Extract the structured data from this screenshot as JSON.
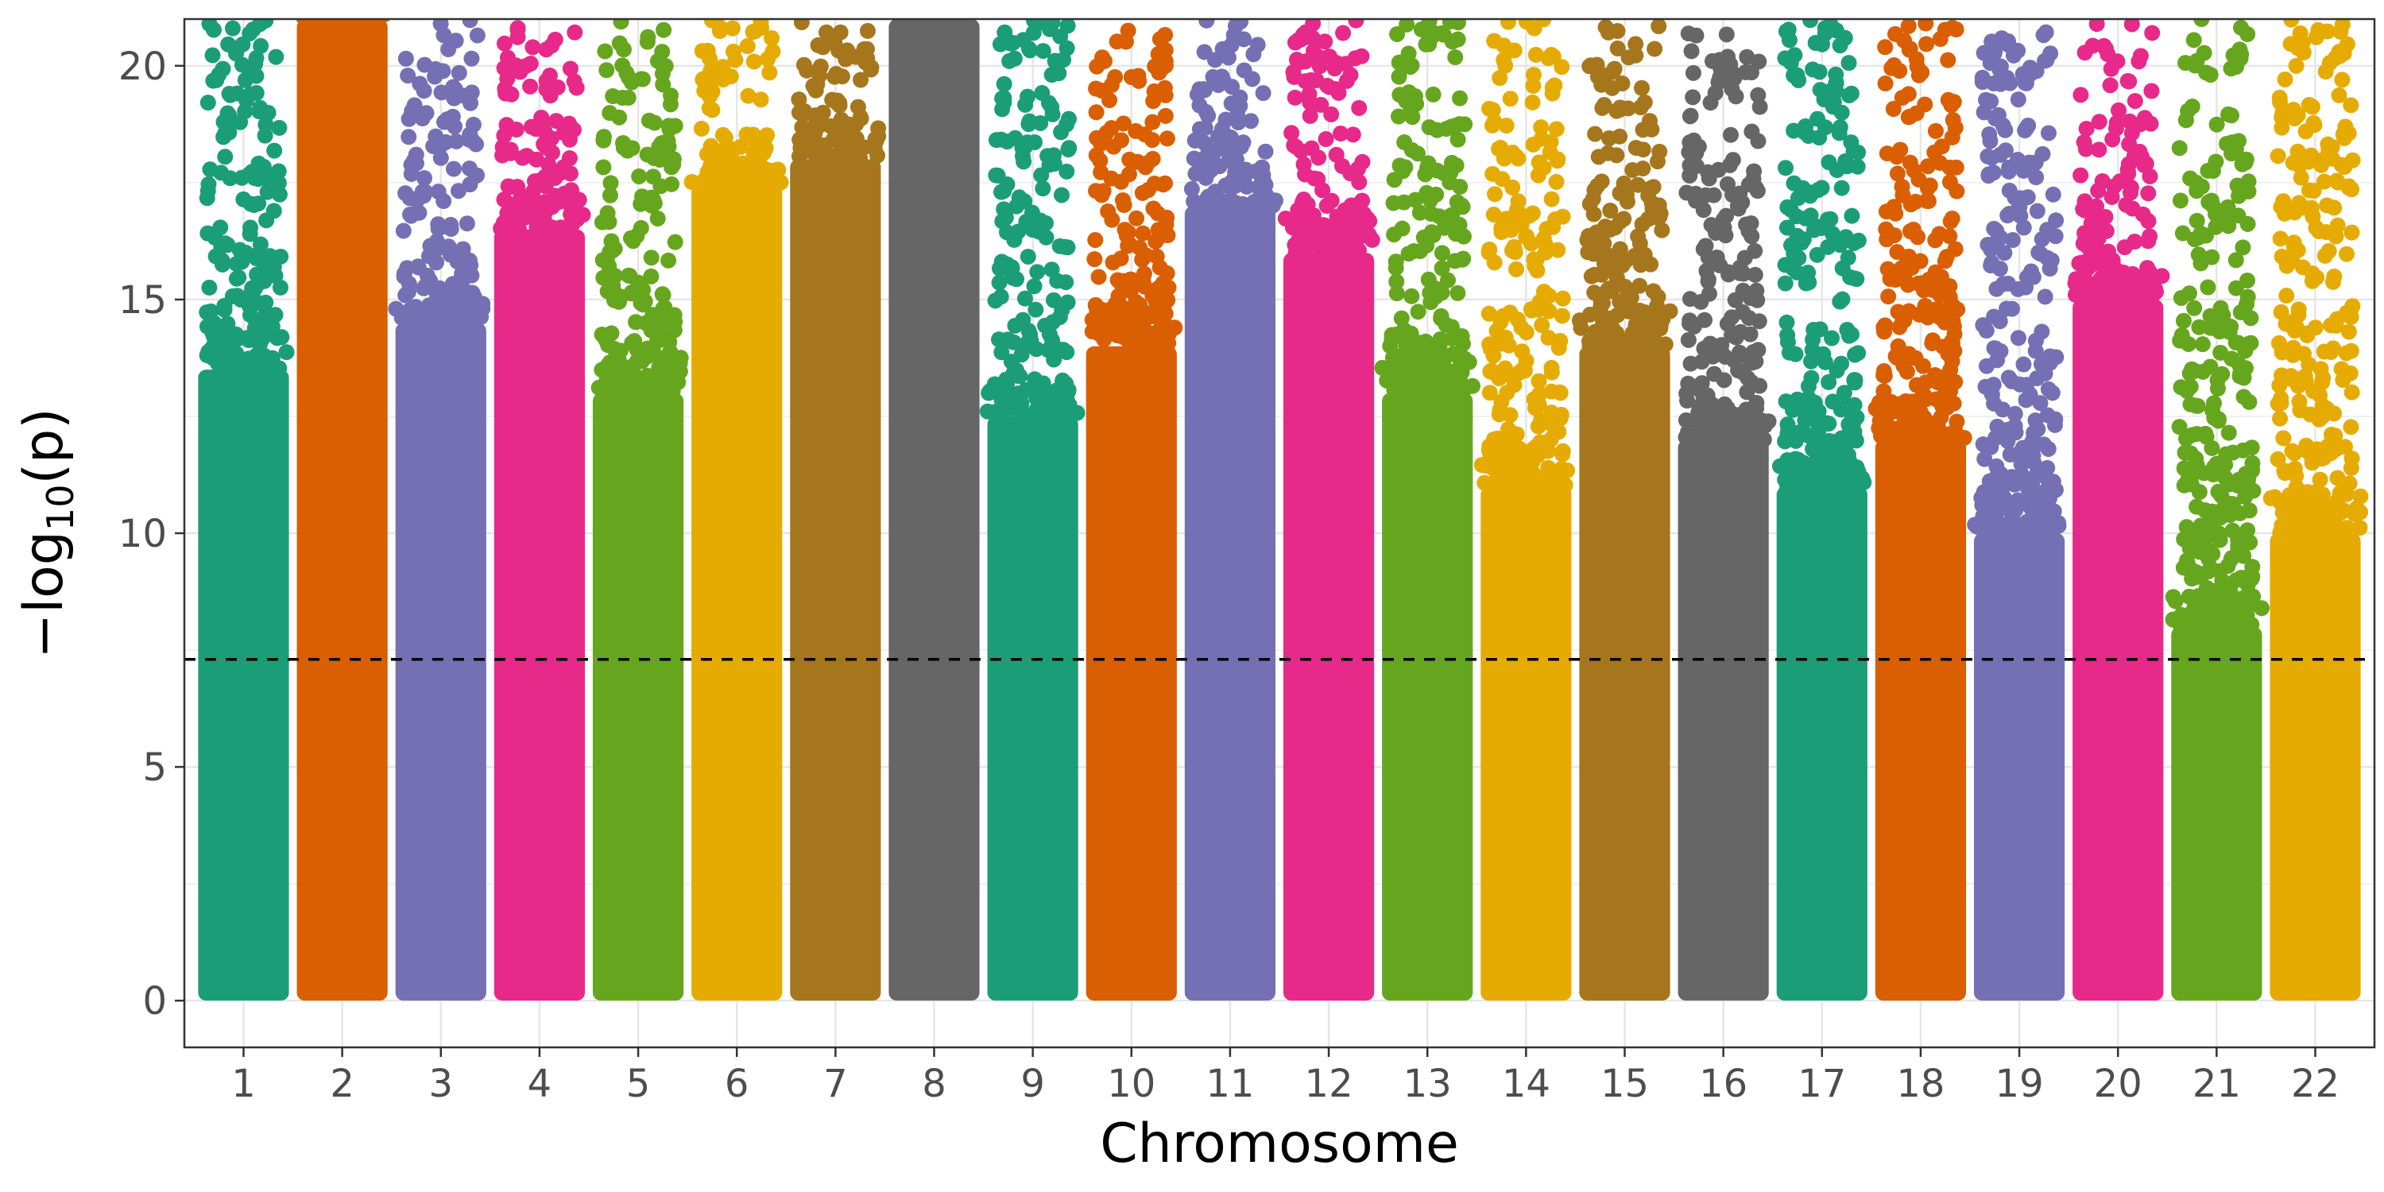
{
  "chart_data": {
    "type": "scatter",
    "subtype": "manhattan",
    "title": "",
    "xlabel": "Chromosome",
    "ylabel": {
      "prefix": "−log",
      "subscript": "10",
      "suffix": "(p)"
    },
    "ylim": [
      -1,
      21
    ],
    "yticks": [
      "0",
      "5",
      "10",
      "15",
      "20"
    ],
    "grid": true,
    "legend": "none",
    "threshold": {
      "y": 7.3,
      "style": "dashed",
      "color": "#000000"
    },
    "palette": [
      "#1b9e77",
      "#d95f02",
      "#7570b3",
      "#e7298a",
      "#66a61e",
      "#e6ab02",
      "#a6761d",
      "#666666"
    ],
    "chromosomes": [
      {
        "label": "1",
        "dense_top": 13.5,
        "sparse_top": 21
      },
      {
        "label": "2",
        "dense_top": 21,
        "sparse_top": 21
      },
      {
        "label": "3",
        "dense_top": 14.5,
        "sparse_top": 21
      },
      {
        "label": "4",
        "dense_top": 16.5,
        "sparse_top": 21
      },
      {
        "label": "5",
        "dense_top": 13,
        "sparse_top": 21
      },
      {
        "label": "6",
        "dense_top": 17.5,
        "sparse_top": 21
      },
      {
        "label": "7",
        "dense_top": 18,
        "sparse_top": 21
      },
      {
        "label": "8",
        "dense_top": 21,
        "sparse_top": 21
      },
      {
        "label": "9",
        "dense_top": 12.5,
        "sparse_top": 21
      },
      {
        "label": "10",
        "dense_top": 14,
        "sparse_top": 21
      },
      {
        "label": "11",
        "dense_top": 17,
        "sparse_top": 21
      },
      {
        "label": "12",
        "dense_top": 16,
        "sparse_top": 21
      },
      {
        "label": "13",
        "dense_top": 13,
        "sparse_top": 21
      },
      {
        "label": "14",
        "dense_top": 11,
        "sparse_top": 21
      },
      {
        "label": "15",
        "dense_top": 14,
        "sparse_top": 21
      },
      {
        "label": "16",
        "dense_top": 12,
        "sparse_top": 20.7
      },
      {
        "label": "17",
        "dense_top": 11,
        "sparse_top": 21
      },
      {
        "label": "18",
        "dense_top": 12,
        "sparse_top": 21
      },
      {
        "label": "19",
        "dense_top": 10,
        "sparse_top": 20.8
      },
      {
        "label": "20",
        "dense_top": 15,
        "sparse_top": 21
      },
      {
        "label": "21",
        "dense_top": 8,
        "sparse_top": 21
      },
      {
        "label": "22",
        "dense_top": 10,
        "sparse_top": 21
      }
    ]
  }
}
